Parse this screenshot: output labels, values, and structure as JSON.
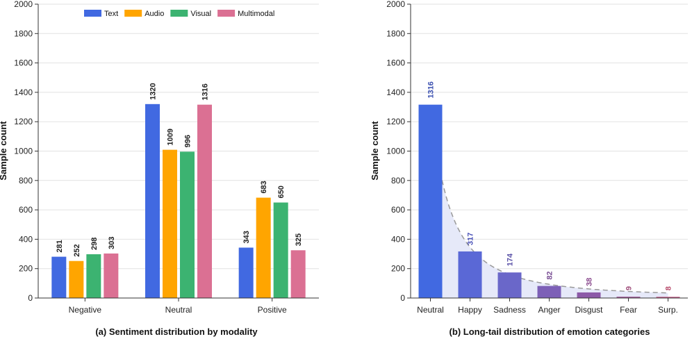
{
  "chart_data": [
    {
      "type": "bar",
      "caption": "(a) Sentiment distribution by modality",
      "ylabel": "Sample count",
      "xlabel": "",
      "ylim": [
        0,
        2000
      ],
      "yticks": [
        0,
        200,
        400,
        600,
        800,
        1000,
        1200,
        1400,
        1600,
        1800,
        2000
      ],
      "categories": [
        "Negative",
        "Neutral",
        "Positive"
      ],
      "legend_position": "top-center",
      "series": [
        {
          "name": "Text",
          "color": "#4169e1",
          "values": [
            281,
            1320,
            343
          ]
        },
        {
          "name": "Audio",
          "color": "#ffa500",
          "values": [
            252,
            1009,
            683
          ]
        },
        {
          "name": "Visual",
          "color": "#3cb371",
          "values": [
            298,
            996,
            650
          ]
        },
        {
          "name": "Multimodal",
          "color": "#db7093",
          "values": [
            303,
            1316,
            325
          ]
        }
      ]
    },
    {
      "type": "bar",
      "caption": "(b) Long-tail distribution of emotion categories",
      "ylabel": "Sample count",
      "xlabel": "",
      "ylim": [
        0,
        2000
      ],
      "yticks": [
        0,
        200,
        400,
        600,
        800,
        1000,
        1200,
        1400,
        1600,
        1800,
        2000
      ],
      "categories": [
        "Neutral",
        "Happy",
        "Sadness",
        "Anger",
        "Disgust",
        "Fear",
        "Surp."
      ],
      "values": [
        1316,
        317,
        174,
        82,
        38,
        9,
        8
      ],
      "bar_colors": [
        "#4169e1",
        "#5a68d6",
        "#6a67c9",
        "#7d60b7",
        "#8c5aa8",
        "#a25e98",
        "#c25a84"
      ],
      "label_colors": [
        "#3a4fb0",
        "#4a52b8",
        "#5a52a8",
        "#7a4f95",
        "#8a4a8e",
        "#a0507d",
        "#b84c6c"
      ],
      "trend": {
        "type": "power-law fit",
        "from_category": 0.0,
        "to_category": 6.0,
        "fill": "#e6e9f9",
        "line": "#999999"
      }
    }
  ]
}
